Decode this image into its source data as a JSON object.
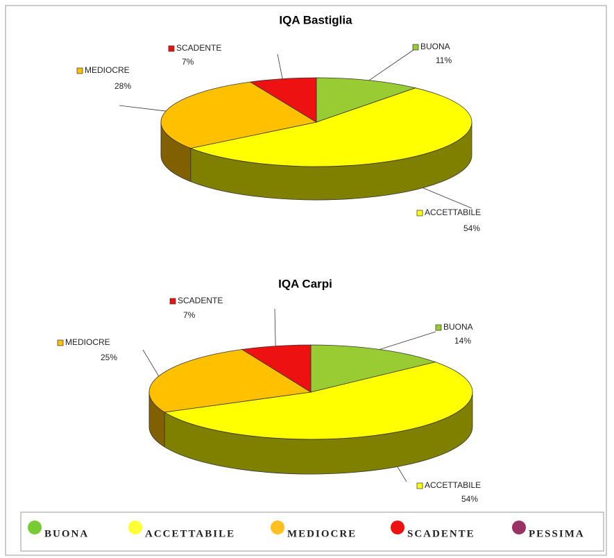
{
  "chart_data": [
    {
      "type": "pie",
      "title": "IQA Bastiglia",
      "categories": [
        "BUONA",
        "ACCETTABILE",
        "MEDIOCRE",
        "SCADENTE"
      ],
      "values": [
        11,
        54,
        28,
        7
      ],
      "value_labels": [
        "11%",
        "54%",
        "28%",
        "7%"
      ],
      "colors": [
        "#99cc33",
        "#ffff00",
        "#ffc000",
        "#ee1111"
      ]
    },
    {
      "type": "pie",
      "title": "IQA Carpi",
      "categories": [
        "BUONA",
        "ACCETTABILE",
        "MEDIOCRE",
        "SCADENTE"
      ],
      "values": [
        14,
        54,
        25,
        7
      ],
      "value_labels": [
        "14%",
        "54%",
        "25%",
        "7%"
      ],
      "colors": [
        "#99cc33",
        "#ffff00",
        "#ffc000",
        "#ee1111"
      ]
    }
  ],
  "legend": [
    {
      "name": "BUONA",
      "color": "#77cc33"
    },
    {
      "name": "ACCETTABILE",
      "color": "#ffff33"
    },
    {
      "name": "MEDIOCRE",
      "color": "#ffc020"
    },
    {
      "name": "SCADENTE",
      "color": "#ee1111"
    },
    {
      "name": "PESSIMA",
      "color": "#993366"
    }
  ]
}
